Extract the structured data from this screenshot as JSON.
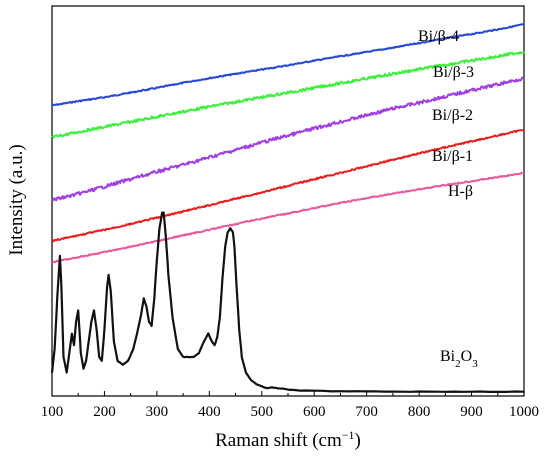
{
  "chart_data": {
    "type": "line",
    "xlabel": "Raman shift (cm",
    "xlabel_sup": "−1",
    "xlabel_end": ")",
    "ylabel": "Intensity (a.u.)",
    "xlim": [
      100,
      1000
    ],
    "ylim": [
      0,
      1
    ],
    "x_ticks": [
      "100",
      "200",
      "300",
      "400",
      "500",
      "600",
      "700",
      "800",
      "900",
      "1000"
    ],
    "y_ticks_shown": false,
    "grid": false,
    "series": [
      {
        "name": "Bi/β-4",
        "color": "#2747d8",
        "x": [
          100,
          150,
          200,
          250,
          300,
          350,
          400,
          450,
          500,
          550,
          600,
          650,
          700,
          750,
          800,
          850,
          900,
          950,
          1000
        ],
        "y": [
          0.745,
          0.756,
          0.766,
          0.778,
          0.79,
          0.803,
          0.815,
          0.826,
          0.837,
          0.848,
          0.86,
          0.871,
          0.882,
          0.893,
          0.905,
          0.917,
          0.928,
          0.94,
          0.953
        ]
      },
      {
        "name": "Bi/β-3",
        "color": "#3ef03e",
        "x": [
          100,
          150,
          200,
          250,
          300,
          350,
          400,
          450,
          500,
          550,
          600,
          650,
          700,
          750,
          800,
          850,
          900,
          950,
          1000
        ],
        "y": [
          0.663,
          0.677,
          0.69,
          0.703,
          0.716,
          0.729,
          0.742,
          0.754,
          0.766,
          0.778,
          0.79,
          0.802,
          0.814,
          0.826,
          0.838,
          0.849,
          0.86,
          0.871,
          0.883
        ]
      },
      {
        "name": "Bi/β-2",
        "color": "#a040e0",
        "x": [
          100,
          150,
          200,
          250,
          300,
          350,
          400,
          450,
          500,
          550,
          600,
          650,
          700,
          750,
          800,
          850,
          900,
          950,
          1000
        ],
        "y": [
          0.502,
          0.518,
          0.537,
          0.556,
          0.575,
          0.593,
          0.612,
          0.631,
          0.65,
          0.668,
          0.686,
          0.703,
          0.72,
          0.737,
          0.752,
          0.768,
          0.784,
          0.799,
          0.815
        ]
      },
      {
        "name": "Bi/β-1",
        "color": "#e81e1e",
        "x": [
          100,
          150,
          200,
          250,
          300,
          350,
          400,
          450,
          500,
          550,
          600,
          650,
          700,
          750,
          800,
          850,
          900,
          950,
          1000
        ],
        "y": [
          0.397,
          0.412,
          0.426,
          0.441,
          0.457,
          0.473,
          0.489,
          0.506,
          0.522,
          0.539,
          0.556,
          0.572,
          0.589,
          0.606,
          0.622,
          0.638,
          0.653,
          0.668,
          0.683
        ]
      },
      {
        "name": "H-β",
        "color": "#e8589e",
        "x": [
          100,
          150,
          200,
          250,
          300,
          350,
          400,
          450,
          500,
          550,
          600,
          650,
          700,
          750,
          800,
          850,
          900,
          950,
          1000
        ],
        "y": [
          0.343,
          0.356,
          0.369,
          0.383,
          0.397,
          0.412,
          0.426,
          0.441,
          0.455,
          0.468,
          0.482,
          0.495,
          0.507,
          0.519,
          0.53,
          0.541,
          0.551,
          0.561,
          0.572
        ]
      },
      {
        "name": "Bi",
        "name_sub": "2",
        "name_end": "O",
        "name_sub2": "3",
        "color": "#111111",
        "x": [
          100,
          105,
          110,
          115,
          118,
          122,
          128,
          134,
          138,
          142,
          146,
          150,
          155,
          160,
          165,
          170,
          175,
          180,
          185,
          190,
          195,
          200,
          205,
          208,
          212,
          218,
          225,
          235,
          245,
          255,
          262,
          270,
          275,
          280,
          285,
          290,
          295,
          300,
          305,
          310,
          313,
          317,
          322,
          330,
          340,
          350,
          360,
          370,
          380,
          390,
          398,
          405,
          410,
          415,
          420,
          425,
          430,
          435,
          440,
          445,
          448,
          452,
          457,
          462,
          470,
          480,
          490,
          500,
          510,
          520,
          530,
          545,
          560,
          600,
          650,
          700,
          750,
          800,
          850,
          900,
          950,
          1000
        ],
        "y": [
          0.06,
          0.12,
          0.25,
          0.36,
          0.28,
          0.1,
          0.06,
          0.12,
          0.16,
          0.13,
          0.19,
          0.22,
          0.11,
          0.07,
          0.09,
          0.14,
          0.19,
          0.22,
          0.17,
          0.1,
          0.09,
          0.17,
          0.28,
          0.31,
          0.27,
          0.14,
          0.09,
          0.08,
          0.09,
          0.12,
          0.16,
          0.21,
          0.25,
          0.23,
          0.19,
          0.18,
          0.25,
          0.35,
          0.43,
          0.47,
          0.47,
          0.41,
          0.31,
          0.2,
          0.12,
          0.1,
          0.1,
          0.1,
          0.11,
          0.14,
          0.16,
          0.14,
          0.13,
          0.15,
          0.2,
          0.3,
          0.38,
          0.42,
          0.43,
          0.42,
          0.38,
          0.28,
          0.17,
          0.1,
          0.06,
          0.04,
          0.03,
          0.025,
          0.02,
          0.022,
          0.02,
          0.018,
          0.015,
          0.013,
          0.012,
          0.012,
          0.011,
          0.011,
          0.011,
          0.011,
          0.011,
          0.011
        ]
      }
    ]
  }
}
